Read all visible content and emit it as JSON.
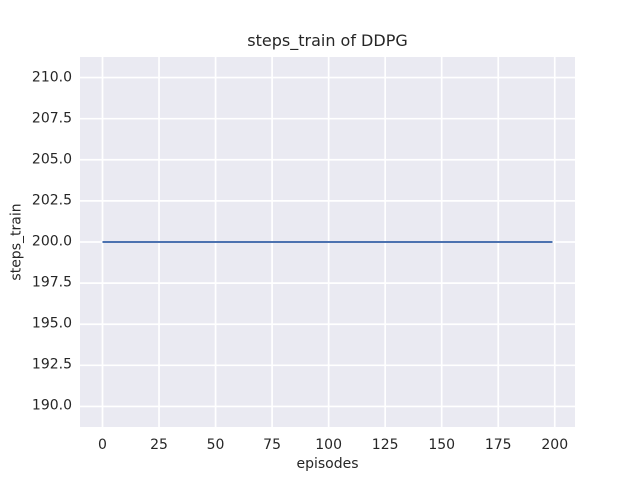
{
  "chart_data": {
    "type": "line",
    "title": "steps_train of DDPG",
    "xlabel": "episodes",
    "ylabel": "steps_train",
    "xlim": [
      -9.95,
      208.95
    ],
    "ylim": [
      188.75,
      211.25
    ],
    "xtick_values": [
      0,
      25,
      50,
      75,
      100,
      125,
      150,
      175,
      200
    ],
    "xtick_labels": [
      "0",
      "25",
      "50",
      "75",
      "100",
      "125",
      "150",
      "175",
      "200"
    ],
    "ytick_values": [
      190.0,
      192.5,
      195.0,
      197.5,
      200.0,
      202.5,
      205.0,
      207.5,
      210.0
    ],
    "ytick_labels": [
      "190.0",
      "192.5",
      "195.0",
      "197.5",
      "200.0",
      "202.5",
      "205.0",
      "207.5",
      "210.0"
    ],
    "grid": true,
    "legend": "none",
    "series": [
      {
        "name": "steps_train",
        "x": [
          0,
          199
        ],
        "y": [
          200,
          200
        ],
        "color": "#4C72B0",
        "line_width": 2
      }
    ],
    "colors": {
      "figure_background": "#ffffff",
      "plot_background": "#EAEAF2",
      "grid_color": "#ffffff",
      "text_color": "#262626"
    }
  }
}
